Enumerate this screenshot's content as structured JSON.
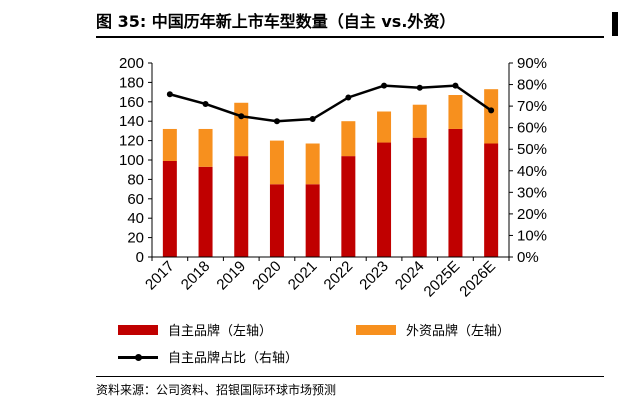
{
  "title": "图 35: 中国历年新上市车型数量（自主 vs.外资）",
  "source": "资料来源：公司资料、招银国际环球市场预测",
  "chart_data": {
    "type": "bar",
    "stacked": true,
    "categories": [
      "2017",
      "2018",
      "2019",
      "2020",
      "2021",
      "2022",
      "2023",
      "2024",
      "2025E",
      "2026E"
    ],
    "series": [
      {
        "name": "自主品牌（左轴）",
        "type": "bar",
        "axis": "left",
        "color": "#C00000",
        "values": [
          99,
          93,
          104,
          75,
          75,
          104,
          118,
          123,
          132,
          117
        ]
      },
      {
        "name": "外资品牌（左轴）",
        "type": "bar",
        "axis": "left",
        "color": "#F7901E",
        "values": [
          33,
          39,
          55,
          45,
          42,
          36,
          32,
          34,
          35,
          56
        ]
      },
      {
        "name": "自主品牌占比（右轴）",
        "type": "line",
        "axis": "right",
        "color": "#000000",
        "values": [
          75.5,
          71,
          65.3,
          63,
          64,
          74,
          79.5,
          78.5,
          79.5,
          68
        ]
      }
    ],
    "ylim": [
      0,
      200
    ],
    "yticks": [
      "0",
      "20",
      "40",
      "60",
      "80",
      "100",
      "120",
      "140",
      "160",
      "180",
      "200"
    ],
    "y2lim": [
      0,
      90
    ],
    "y2ticks": [
      "0%",
      "10%",
      "20%",
      "30%",
      "40%",
      "50%",
      "60%",
      "70%",
      "80%",
      "90%"
    ],
    "grid": false,
    "legend": "bottom"
  }
}
